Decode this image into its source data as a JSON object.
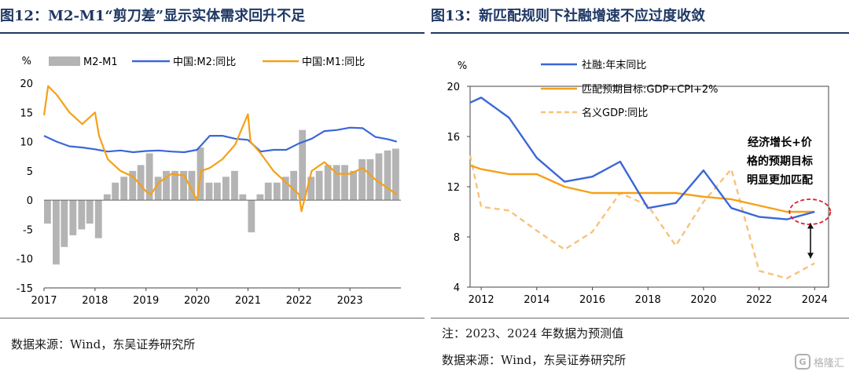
{
  "left": {
    "title": "图12：M2-M1“剪刀差”显示实体需求回升不足",
    "source": "数据来源：Wind，东吴证券研究所",
    "chart_data": {
      "type": "bar+line",
      "unit_label": "%",
      "ylim": [
        -15,
        20
      ],
      "yticks": [
        -15,
        -10,
        -5,
        0,
        5,
        10,
        15,
        20
      ],
      "x_ticks": [
        "2017",
        "2018",
        "2019",
        "2020",
        "2021",
        "2022",
        "2023"
      ],
      "x_tick_values": [
        2017,
        2018,
        2019,
        2020,
        2021,
        2022,
        2023
      ],
      "x_range": [
        2017,
        2024.0
      ],
      "legend_position": "top",
      "bars": {
        "name": "M2-M1",
        "color": "#b4b4b4",
        "x": [
          2017.0,
          2017.17,
          2017.33,
          2017.5,
          2017.67,
          2017.83,
          2018.0,
          2018.17,
          2018.33,
          2018.5,
          2018.67,
          2018.83,
          2019.0,
          2019.17,
          2019.33,
          2019.5,
          2019.67,
          2019.83,
          2020.0,
          2020.17,
          2020.33,
          2020.5,
          2020.67,
          2020.83,
          2021.0,
          2021.17,
          2021.33,
          2021.5,
          2021.67,
          2021.83,
          2022.0,
          2022.17,
          2022.33,
          2022.5,
          2022.67,
          2022.83,
          2023.0,
          2023.17,
          2023.33,
          2023.5,
          2023.67,
          2023.83
        ],
        "values": [
          -4,
          -11,
          -8,
          -6,
          -5,
          -4,
          -6.5,
          1,
          3,
          4,
          5,
          6,
          8,
          4,
          5,
          5,
          5,
          5,
          9,
          3,
          3,
          4,
          5,
          1,
          -5.5,
          1,
          3,
          3,
          4,
          5,
          12,
          4,
          5,
          6,
          6,
          6,
          5,
          7,
          7,
          8,
          8.5,
          8.8
        ]
      },
      "series": [
        {
          "name": "中国:M2:同比",
          "color": "#3a67d8",
          "x": [
            2017.0,
            2017.25,
            2017.5,
            2017.75,
            2018.0,
            2018.25,
            2018.5,
            2018.75,
            2019.0,
            2019.25,
            2019.5,
            2019.75,
            2020.0,
            2020.25,
            2020.5,
            2020.75,
            2021.0,
            2021.25,
            2021.5,
            2021.75,
            2022.0,
            2022.25,
            2022.5,
            2022.75,
            2023.0,
            2023.25,
            2023.5,
            2023.75,
            2023.92
          ],
          "values": [
            11,
            10,
            9.2,
            9,
            8.7,
            8.3,
            8.5,
            8.2,
            8.4,
            8.5,
            8.3,
            8.2,
            8.6,
            11,
            11,
            10.5,
            10.3,
            8.3,
            8.6,
            8.6,
            9.7,
            10.5,
            11.8,
            12,
            12.4,
            12.3,
            10.8,
            10.4,
            10.0
          ]
        },
        {
          "name": "中国:M1:同比",
          "color": "#f5a019",
          "x": [
            2017.0,
            2017.08,
            2017.25,
            2017.5,
            2017.75,
            2018.0,
            2018.08,
            2018.25,
            2018.5,
            2018.75,
            2019.0,
            2019.1,
            2019.25,
            2019.5,
            2019.75,
            2020.0,
            2020.08,
            2020.25,
            2020.5,
            2020.75,
            2021.0,
            2021.05,
            2021.25,
            2021.5,
            2021.75,
            2022.0,
            2022.05,
            2022.25,
            2022.5,
            2022.75,
            2023.0,
            2023.25,
            2023.5,
            2023.75,
            2023.92
          ],
          "values": [
            14.5,
            19.5,
            18,
            15,
            13,
            15,
            11,
            7,
            5,
            4,
            1.5,
            1,
            3,
            4.5,
            4.2,
            0,
            5,
            5.5,
            7,
            9.5,
            14.7,
            10,
            8,
            5,
            3,
            1,
            -1.9,
            5,
            6.5,
            4.5,
            4.5,
            5.5,
            3.5,
            2,
            1.0
          ]
        }
      ]
    }
  },
  "right": {
    "title": "图13：新匹配规则下社融增速不应过度收敛",
    "note": "注：2023、2024 年数据为预测值",
    "source": "数据来源：Wind，东吴证券研究所",
    "annotation": [
      "经济增长+价",
      "格的预期目标",
      "明显更加匹配"
    ],
    "chart_data": {
      "type": "line",
      "unit_label": "%",
      "ylim": [
        4,
        20
      ],
      "yticks": [
        4,
        8,
        12,
        16,
        20
      ],
      "x_ticks": [
        "2012",
        "2014",
        "2016",
        "2018",
        "2020",
        "2022",
        "2024"
      ],
      "x_tick_values": [
        2012,
        2014,
        2016,
        2018,
        2020,
        2022,
        2024
      ],
      "x_range": [
        2011.6,
        2024.5
      ],
      "legend_position": "top-left",
      "series": [
        {
          "name": "社融:年末同比",
          "color": "#3a67d8",
          "dashed": false,
          "x": [
            2011.6,
            2012.0,
            2013,
            2014,
            2015,
            2016,
            2017,
            2018,
            2019,
            2020,
            2021,
            2022,
            2023,
            2024
          ],
          "values": [
            18.7,
            19.1,
            17.5,
            14.3,
            12.4,
            12.8,
            14.0,
            10.3,
            10.7,
            13.3,
            10.3,
            9.6,
            9.4,
            10.0
          ]
        },
        {
          "name": "匹配预期目标:GDP+CPI+2%",
          "color": "#f5a019",
          "dashed": false,
          "x": [
            2011.6,
            2012,
            2013,
            2014,
            2015,
            2016,
            2017,
            2018,
            2019,
            2020,
            2021,
            2022,
            2023,
            2024
          ],
          "values": [
            13.7,
            13.4,
            13.0,
            13.0,
            12.0,
            11.5,
            11.5,
            11.5,
            11.5,
            11.2,
            11.0,
            10.5,
            10.0,
            10.0
          ]
        },
        {
          "name": "名义GDP:同比",
          "color": "#f8c27a",
          "dashed": true,
          "x": [
            2011.6,
            2012,
            2013,
            2014,
            2015,
            2016,
            2017,
            2018,
            2019,
            2020,
            2021,
            2022,
            2023,
            2024
          ],
          "values": [
            14.5,
            10.4,
            10.1,
            8.5,
            7.0,
            8.4,
            11.5,
            10.5,
            7.3,
            10.8,
            13.4,
            5.3,
            4.7,
            5.9
          ]
        }
      ]
    }
  },
  "watermark": {
    "text": "格隆汇",
    "logo": "G"
  }
}
